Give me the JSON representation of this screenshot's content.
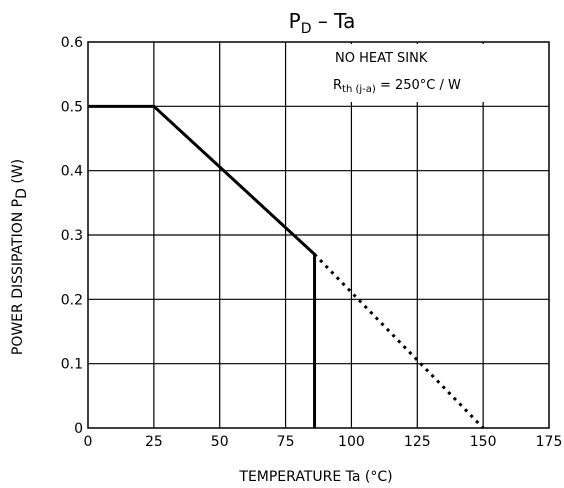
{
  "chart_data": {
    "type": "line",
    "title": {
      "main": "P",
      "sub": "D",
      "rest": " – Ta"
    },
    "xlabel": {
      "main": "TEMPERATURE   Ta   (°C)"
    },
    "ylabel": {
      "main": "POWER DISSIPATION   P",
      "sub": "D",
      "rest": "   (W)"
    },
    "xlim": [
      0,
      175
    ],
    "ylim": [
      0,
      0.6
    ],
    "xticks": [
      0,
      25,
      50,
      75,
      100,
      125,
      150,
      175
    ],
    "yticks": [
      0,
      0.1,
      0.2,
      0.3,
      0.4,
      0.5,
      0.6
    ],
    "xtick_labels": [
      "0",
      "25",
      "50",
      "75",
      "100",
      "125",
      "150",
      "175"
    ],
    "ytick_labels": [
      "0",
      "0.1",
      "0.2",
      "0.3",
      "0.4",
      "0.5",
      "0.6"
    ],
    "grid": true,
    "annotations": {
      "line1": "NO HEAT SINK",
      "line2_main": "R",
      "line2_sub": "th (j-a)",
      "line2_rest": " = 250°C / W"
    },
    "series": [
      {
        "style": "solid",
        "x": [
          0,
          25,
          86,
          86
        ],
        "y": [
          0.5,
          0.5,
          0.27,
          0
        ]
      },
      {
        "style": "dotted",
        "x": [
          86,
          150
        ],
        "y": [
          0.27,
          0
        ]
      }
    ]
  }
}
